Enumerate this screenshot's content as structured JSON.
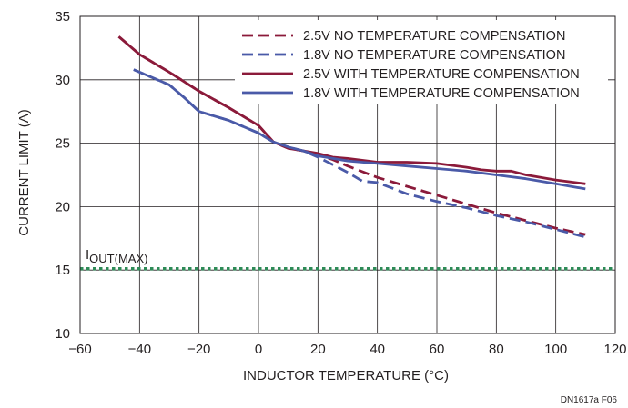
{
  "chart_data": {
    "type": "line",
    "xlabel": "INDUCTOR TEMPERATURE (°C)",
    "ylabel": "CURRENT LIMIT (A)",
    "xlim": [
      -60,
      120
    ],
    "ylim": [
      10,
      35
    ],
    "x_ticks": [
      -60,
      -40,
      -20,
      0,
      20,
      40,
      60,
      80,
      100,
      120
    ],
    "y_ticks": [
      10,
      15,
      20,
      25,
      30,
      35
    ],
    "x_tick_labels": [
      "−60",
      "−40",
      "−20",
      "0",
      "20",
      "40",
      "60",
      "80",
      "100",
      "120"
    ],
    "y_tick_labels": [
      "10",
      "15",
      "20",
      "25",
      "30",
      "35"
    ],
    "grid": true,
    "legend_position": "top-right",
    "series": [
      {
        "name": "2.5V NO TEMPERATURE COMPENSATION",
        "color": "#8b1a3a",
        "dash": "dashed",
        "x": [
          -47,
          -40,
          -30,
          -20,
          -10,
          0,
          5,
          10,
          15,
          20,
          25,
          30,
          40,
          50,
          60,
          70,
          80,
          90,
          100,
          110
        ],
        "y": [
          33.4,
          32.0,
          30.6,
          29.1,
          27.8,
          26.4,
          25.1,
          24.6,
          24.4,
          24.1,
          23.7,
          23.2,
          22.3,
          21.6,
          20.9,
          20.2,
          19.5,
          18.9,
          18.3,
          17.8
        ]
      },
      {
        "name": "1.8V NO TEMPERATURE COMPENSATION",
        "color": "#4a5aa8",
        "dash": "dashed",
        "x": [
          -42,
          -35,
          -30,
          -25,
          -20,
          -10,
          0,
          5,
          10,
          15,
          20,
          25,
          30,
          35,
          40,
          50,
          60,
          70,
          80,
          90,
          100,
          110
        ],
        "y": [
          30.8,
          30.1,
          29.6,
          28.6,
          27.5,
          26.8,
          25.8,
          25.1,
          24.7,
          24.4,
          23.9,
          23.3,
          22.7,
          22.0,
          21.9,
          21.0,
          20.4,
          19.9,
          19.3,
          18.8,
          18.2,
          17.6
        ]
      },
      {
        "name": "2.5V WITH TEMPERATURE COMPENSATION",
        "color": "#8b1a3a",
        "dash": "solid",
        "x": [
          -47,
          -40,
          -30,
          -20,
          -10,
          0,
          5,
          10,
          15,
          20,
          25,
          30,
          40,
          50,
          60,
          70,
          75,
          80,
          85,
          90,
          100,
          110
        ],
        "y": [
          33.4,
          32.0,
          30.6,
          29.1,
          27.8,
          26.4,
          25.1,
          24.6,
          24.4,
          24.2,
          23.9,
          23.8,
          23.5,
          23.5,
          23.4,
          23.1,
          22.9,
          22.8,
          22.8,
          22.5,
          22.1,
          21.8
        ]
      },
      {
        "name": "1.8V WITH TEMPERATURE COMPENSATION",
        "color": "#4a5aa8",
        "dash": "solid",
        "x": [
          -42,
          -35,
          -30,
          -25,
          -20,
          -10,
          0,
          5,
          10,
          15,
          20,
          25,
          30,
          40,
          50,
          60,
          70,
          80,
          90,
          100,
          110
        ],
        "y": [
          30.8,
          30.1,
          29.6,
          28.6,
          27.5,
          26.8,
          25.8,
          25.1,
          24.7,
          24.4,
          24.0,
          23.8,
          23.6,
          23.4,
          23.2,
          23.0,
          22.8,
          22.5,
          22.2,
          21.8,
          21.4
        ]
      }
    ],
    "reference_lines": [
      {
        "label": "I",
        "subscript": "OUT(MAX)",
        "y": 15.1,
        "color": "#2e8b57",
        "style": "dotted"
      }
    ],
    "figure_code": "DN1617a F06"
  }
}
